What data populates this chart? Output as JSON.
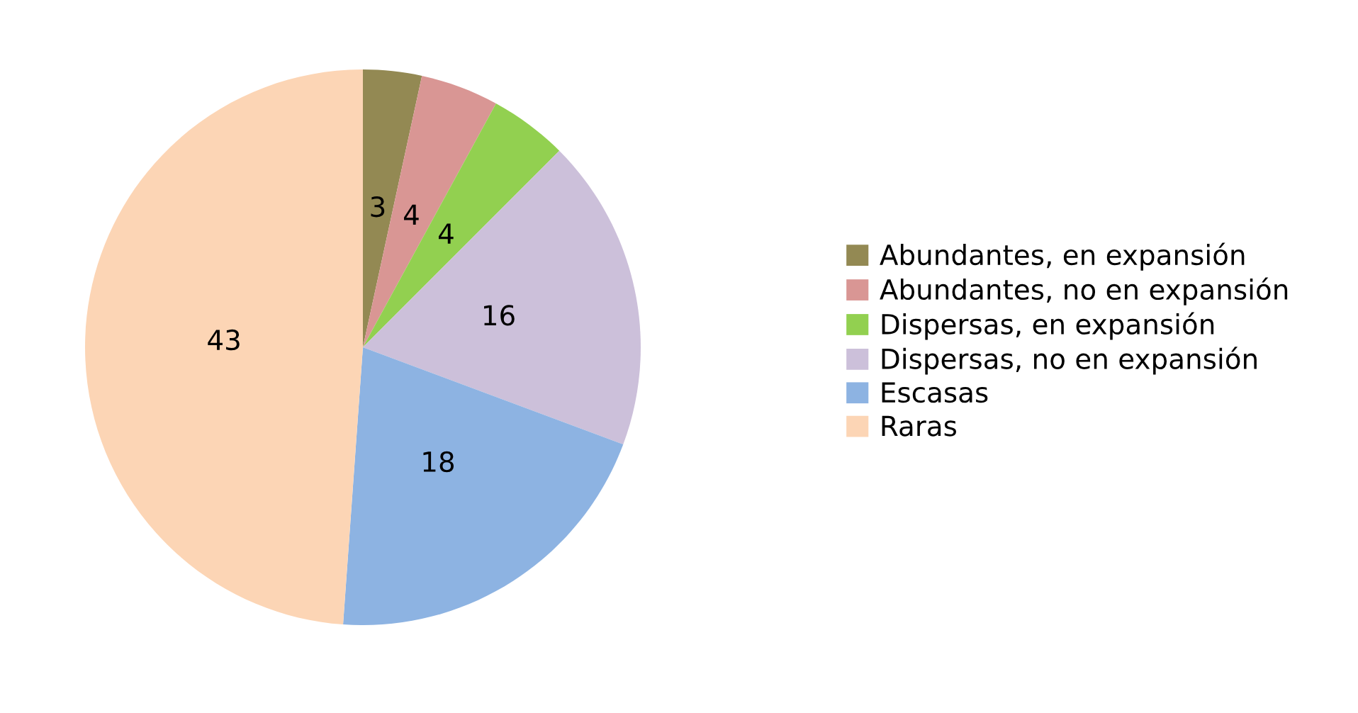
{
  "chart_data": {
    "type": "pie",
    "categories": [
      "Abundantes, en expansión",
      "Abundantes, no en expansión",
      "Dispersas, en expansión",
      "Dispersas, no en expansión",
      "Escasas",
      "Raras"
    ],
    "values": [
      3,
      4,
      4,
      16,
      18,
      43
    ],
    "colors": [
      "#938953",
      "#d99694",
      "#92d050",
      "#ccc0da",
      "#8db3e2",
      "#fcd5b5"
    ],
    "data_labels": true,
    "legend": "right"
  }
}
